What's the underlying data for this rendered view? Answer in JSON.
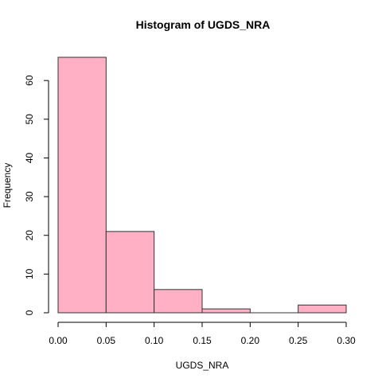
{
  "chart_data": {
    "type": "bar",
    "title": "Histogram of UGDS_NRA",
    "xlabel": "UGDS_NRA",
    "ylabel": "Frequency",
    "bins": [
      {
        "start": 0.0,
        "end": 0.05,
        "count": 66
      },
      {
        "start": 0.05,
        "end": 0.1,
        "count": 21
      },
      {
        "start": 0.1,
        "end": 0.15,
        "count": 6
      },
      {
        "start": 0.15,
        "end": 0.2,
        "count": 1
      },
      {
        "start": 0.2,
        "end": 0.25,
        "count": 0
      },
      {
        "start": 0.25,
        "end": 0.3,
        "count": 2
      }
    ],
    "xlim": [
      0,
      0.3
    ],
    "ylim": [
      0,
      66
    ],
    "xticks": [
      "0.00",
      "0.05",
      "0.10",
      "0.15",
      "0.20",
      "0.25",
      "0.30"
    ],
    "yticks": [
      "0",
      "10",
      "20",
      "30",
      "40",
      "50",
      "60"
    ],
    "bar_color": "#FFB0C4",
    "edge_color": "#333333",
    "grid": false
  }
}
